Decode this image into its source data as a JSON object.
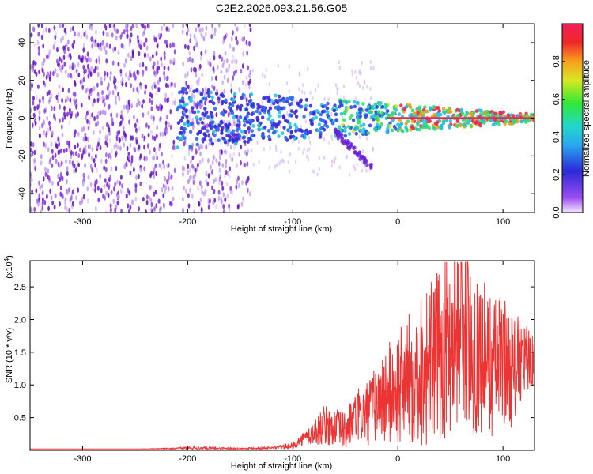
{
  "title": "C2E2.2026.093.21.56.G05",
  "colors": {
    "snr_line": "#ee3333",
    "heatmap_low": "#8a2be2",
    "frame": "#000000"
  },
  "colorbar": {
    "label": "Normalized spectral amplitude",
    "range": [
      0,
      1
    ],
    "ticks": [
      0,
      0.2,
      0.4,
      0.6,
      0.8
    ],
    "tick_labels": [
      "0.0",
      "0.2",
      "0.4",
      "0.6",
      "0.8"
    ]
  },
  "chart_data": [
    {
      "type": "heatmap",
      "title": "C2E2.2026.093.21.56.G05",
      "xlabel": "Height of straight line (km)",
      "ylabel": "Frequency (Hz)",
      "xlim": [
        -350,
        130
      ],
      "ylim": [
        -50,
        50
      ],
      "xticks": [
        -300,
        -200,
        -100,
        0,
        100
      ],
      "yticks": [
        -40,
        -20,
        0,
        20,
        40
      ],
      "description_of_features": {
        "noise_region_x": [
          -350,
          -140
        ],
        "data_gap_x": [
          -212,
          -205
        ],
        "signal_center_hz": 0,
        "signal_band_start_x": -210
      }
    },
    {
      "type": "line",
      "xlabel": "Height of straight line (km)",
      "ylabel": "SNR (10 * v/v)",
      "y_multiplier_label": "(x10",
      "y_multiplier_exp": "4",
      "xlim": [
        -350,
        130
      ],
      "ylim": [
        0,
        2.9
      ],
      "xticks": [
        -300,
        -200,
        -100,
        0,
        100
      ],
      "yticks": [
        0.5,
        1.0,
        1.5,
        2.0,
        2.5
      ],
      "ytick_labels": [
        "0.5",
        "1.0",
        "1.5",
        "2.0",
        "2.5"
      ],
      "series": [
        {
          "name": "SNR",
          "x": [
            -350,
            -300,
            -250,
            -210,
            -200,
            -150,
            -120,
            -100,
            -90,
            -80,
            -70,
            -60,
            -50,
            -40,
            -30,
            -20,
            -10,
            0,
            10,
            20,
            30,
            40,
            50,
            60,
            70,
            80,
            90,
            100,
            110,
            120,
            130
          ],
          "values": [
            0.02,
            0.02,
            0.02,
            0.03,
            0.04,
            0.03,
            0.04,
            0.08,
            0.2,
            0.3,
            0.45,
            0.4,
            0.35,
            0.6,
            0.65,
            0.85,
            1.0,
            1.1,
            1.3,
            1.5,
            1.6,
            1.7,
            2.0,
            2.3,
            1.8,
            1.7,
            1.5,
            1.6,
            1.4,
            1.5,
            1.5
          ],
          "spread": [
            0,
            0,
            0,
            0.01,
            0.03,
            0.01,
            0.02,
            0.05,
            0.1,
            0.2,
            0.3,
            0.3,
            0.3,
            0.4,
            0.5,
            0.6,
            0.8,
            0.9,
            1.0,
            1.2,
            1.3,
            1.3,
            1.5,
            1.5,
            1.3,
            1.2,
            1.1,
            1.0,
            0.9,
            0.6,
            0.4
          ]
        }
      ]
    }
  ]
}
